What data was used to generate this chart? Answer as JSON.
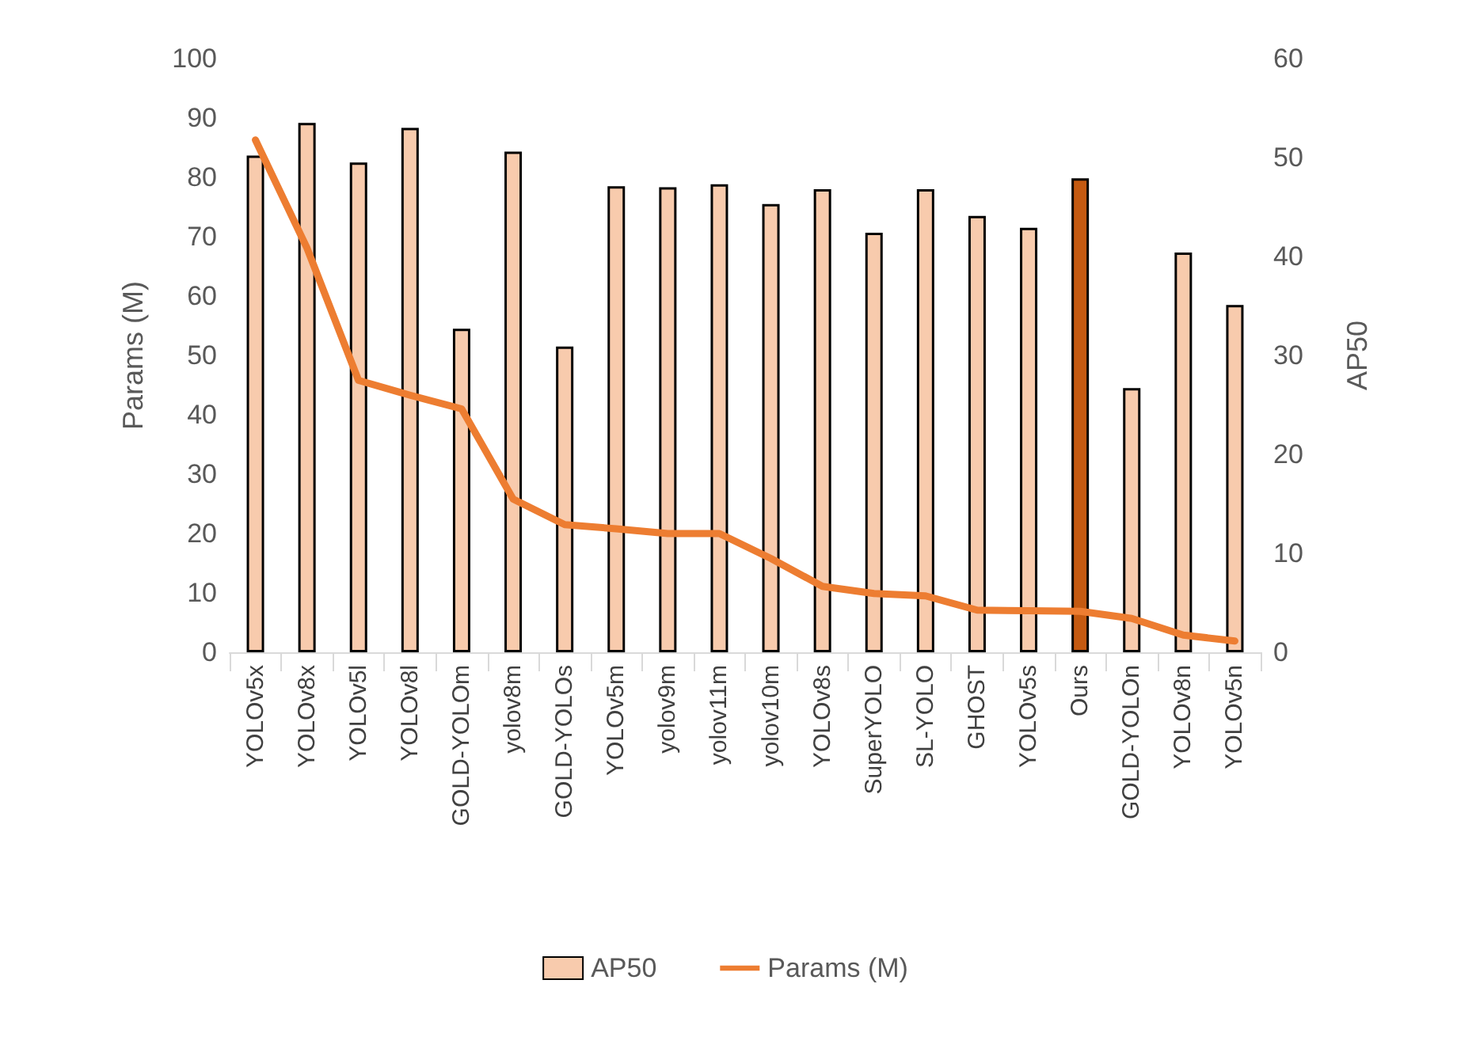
{
  "chart_data": {
    "type": "bar",
    "ylabel": "Params (M)",
    "y2label": "AP50",
    "categories": [
      "YOLOv5x",
      "YOLOv8x",
      "YOLOv5l",
      "YOLOv8l",
      "GOLD-YOLOm",
      "yolov8m",
      "GOLD-YOLOs",
      "YOLOv5m",
      "yolov9m",
      "yolov11m",
      "yolov10m",
      "YOLOv8s",
      "SuperYOLO",
      "SL-YOLO",
      "GHOST",
      "YOLOv5s",
      "Ours",
      "GOLD-YOLOn",
      "YOLOv8n",
      "YOLOv5n"
    ],
    "series": [
      {
        "name": "AP50",
        "axis": "y2",
        "color": "#f8cbad",
        "colors": [
          "#f8cbad",
          "#f8cbad",
          "#f8cbad",
          "#f8cbad",
          "#f8cbad",
          "#f8cbad",
          "#f8cbad",
          "#f8cbad",
          "#f8cbad",
          "#f8cbad",
          "#f8cbad",
          "#f8cbad",
          "#f8cbad",
          "#f8cbad",
          "#f8cbad",
          "#f8cbad",
          "#c55a11",
          "#f8cbad",
          "#f8cbad",
          "#f8cbad"
        ],
        "values": [
          50.2,
          53.5,
          49.5,
          53.0,
          32.7,
          50.6,
          30.9,
          47.1,
          47.0,
          47.3,
          45.3,
          46.8,
          42.4,
          46.8,
          44.1,
          42.9,
          47.9,
          26.7,
          40.4,
          35.1
        ]
      },
      {
        "name": "Params (M)",
        "type": "line",
        "color": "#ed7d31",
        "values": [
          86.3,
          68.1,
          45.8,
          43.3,
          41.0,
          25.8,
          21.5,
          20.8,
          20.0,
          20.0,
          15.8,
          11.1,
          9.9,
          9.5,
          7.1,
          7.0,
          6.9,
          5.7,
          2.9,
          1.9
        ]
      }
    ],
    "ylim": [
      0,
      100
    ],
    "yticks": [
      0,
      10,
      20,
      30,
      40,
      50,
      60,
      70,
      80,
      90,
      100
    ],
    "y2lim": [
      0,
      60
    ],
    "y2ticks": [
      0,
      10,
      20,
      30,
      40,
      50,
      60
    ],
    "grid": false,
    "legend": "bottom",
    "marker": "none",
    "line_style": "solid"
  }
}
